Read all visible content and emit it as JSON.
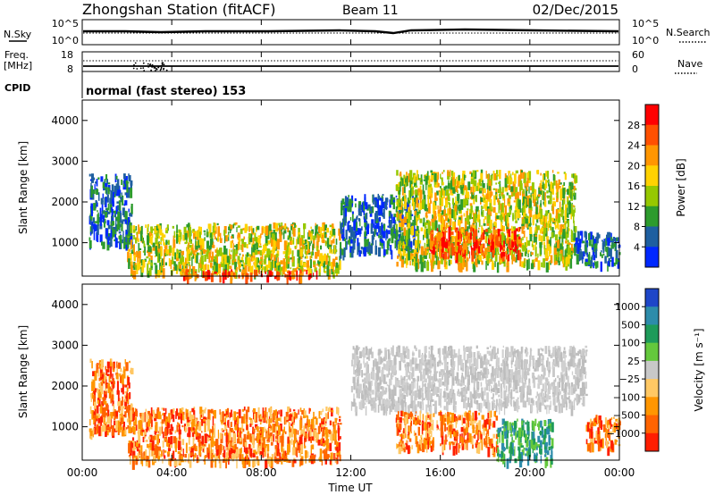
{
  "header": {
    "station": "Zhongshan Station (fitACF)",
    "beam": "Beam 11",
    "date": "02/Dec/2015"
  },
  "strip_panels": {
    "nsky_label": "N.Sky",
    "nsky_ticks": [
      "10^5",
      "10^0"
    ],
    "nsearch_label": "N.Search",
    "nsearch_ticks": [
      "10^5",
      "10^0"
    ],
    "freq_label_1": "Freq.",
    "freq_label_2": "[MHz]",
    "freq_ticks": [
      "18",
      "8"
    ],
    "nave_label": "Nave",
    "nave_ticks": [
      "60",
      "0"
    ],
    "cpid_label": "CPID",
    "cpid_text": "normal (fast stereo) 153"
  },
  "chart_data": [
    {
      "type": "heatmap",
      "panel": "power",
      "ylabel": "Slant Range [km]",
      "ylim": [
        180,
        4500
      ],
      "yticks": [
        "4000",
        "3000",
        "2000",
        "1000"
      ],
      "xlim": [
        "00:00",
        "24:00"
      ],
      "colorbar_label": "Power [dB]",
      "colorbar_ticks": [
        "28",
        "24",
        "20",
        "16",
        "12",
        "8",
        "4"
      ],
      "colorbar_colors": [
        "#ff0000",
        "#ff5000",
        "#ff9600",
        "#ffd200",
        "#96c800",
        "#2d9b2d",
        "#1e5fa0",
        "#0028ff"
      ],
      "echo_regions": [
        {
          "time": [
            0.3,
            2.2
          ],
          "range": [
            1000,
            2700
          ],
          "level": "low"
        },
        {
          "time": [
            2.0,
            11.5
          ],
          "range": [
            300,
            1500
          ],
          "level": "medium"
        },
        {
          "time": [
            4.5,
            10.5
          ],
          "range": [
            180,
            350
          ],
          "level": "high"
        },
        {
          "time": [
            11.5,
            15.0
          ],
          "range": [
            800,
            2200
          ],
          "level": "low"
        },
        {
          "time": [
            14.0,
            22.0
          ],
          "range": [
            500,
            2800
          ],
          "level": "medium"
        },
        {
          "time": [
            15.5,
            19.5
          ],
          "range": [
            700,
            1400
          ],
          "level": "high"
        },
        {
          "time": [
            22.0,
            24.0
          ],
          "range": [
            500,
            1300
          ],
          "level": "low"
        }
      ]
    },
    {
      "type": "heatmap",
      "panel": "velocity",
      "ylabel": "Slant Range [km]",
      "ylim": [
        180,
        4500
      ],
      "yticks": [
        "4000",
        "3000",
        "2000",
        "1000"
      ],
      "xlim": [
        "00:00",
        "24:00"
      ],
      "xticks": [
        "00:00",
        "04:00",
        "08:00",
        "12:00",
        "16:00",
        "20:00",
        "00:00"
      ],
      "xlabel": "Time UT",
      "colorbar_label": "Velocity [m s⁻¹]",
      "colorbar_ticks": [
        "1000",
        "500",
        "100",
        "25",
        "−25",
        "−100",
        "−500",
        "−1000"
      ],
      "colorbar_colors": [
        "#1e46c8",
        "#2d8caa",
        "#1e9b5a",
        "#64c83c",
        "#c8c8c8",
        "#ffc864",
        "#ff9600",
        "#ff6400",
        "#ff1e00"
      ],
      "echo_regions": [
        {
          "time": [
            0.3,
            2.2
          ],
          "range": [
            900,
            2700
          ],
          "level": "orange"
        },
        {
          "time": [
            2.0,
            11.5
          ],
          "range": [
            180,
            1500
          ],
          "level": "orange"
        },
        {
          "time": [
            12.0,
            22.5
          ],
          "range": [
            1500,
            3000
          ],
          "level": "gray"
        },
        {
          "time": [
            14.0,
            18.5
          ],
          "range": [
            500,
            1400
          ],
          "level": "orange"
        },
        {
          "time": [
            18.5,
            21.0
          ],
          "range": [
            200,
            1200
          ],
          "level": "green"
        },
        {
          "time": [
            22.5,
            24.0
          ],
          "range": [
            500,
            1300
          ],
          "level": "orange"
        }
      ]
    }
  ]
}
